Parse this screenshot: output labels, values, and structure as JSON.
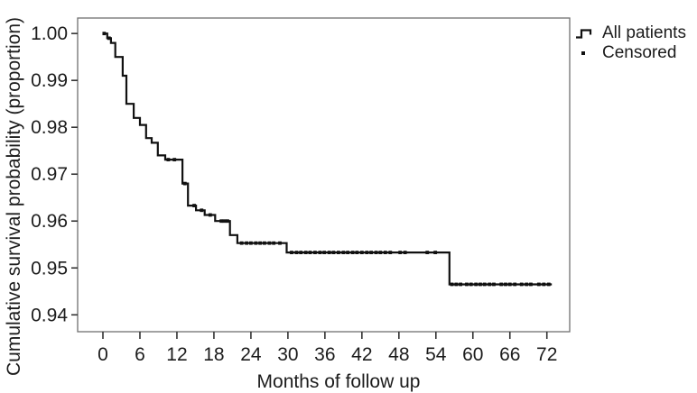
{
  "figure": {
    "y_axis_title": "Cumulative survival probability (proportion)",
    "x_axis_title": "Months of follow up",
    "legend": [
      {
        "label": "All patients",
        "marker": "step-line-icon"
      },
      {
        "label": "Censored",
        "marker": "dot-icon"
      }
    ],
    "line_color": "#111111",
    "text_color": "#1c1c1c",
    "frame_color": "#6f6f6f",
    "axis_color": "#333333"
  },
  "chart_data": {
    "type": "line",
    "subtype": "kaplan-meier-step",
    "title": "",
    "xlabel": "Months of follow up",
    "ylabel": "Cumulative survival probability (proportion)",
    "legend_position": "top-right-outside",
    "grid": false,
    "xlim": [
      -4.1,
      75.7
    ],
    "ylim": [
      0.9364,
      1.0033
    ],
    "x_tick_values": [
      0,
      6,
      12,
      18,
      24,
      30,
      36,
      42,
      48,
      54,
      60,
      66,
      72
    ],
    "x_tick_labels": [
      "0",
      "6",
      "12",
      "18",
      "24",
      "30",
      "36",
      "42",
      "48",
      "54",
      "60",
      "66",
      "72"
    ],
    "y_tick_values": [
      1.0,
      0.99,
      0.98,
      0.97,
      0.96,
      0.95,
      0.94
    ],
    "y_tick_labels": [
      "1.00",
      "0.99",
      "0.98",
      "0.97",
      "0.96",
      "0.95",
      "0.94"
    ],
    "series": [
      {
        "name": "All patients",
        "style": "step-post",
        "points": [
          [
            0,
            1.0
          ],
          [
            0.7,
            0.999
          ],
          [
            1.3,
            0.998
          ],
          [
            2.0,
            0.995
          ],
          [
            3.2,
            0.991
          ],
          [
            3.8,
            0.985
          ],
          [
            5.0,
            0.982
          ],
          [
            6.0,
            0.9805
          ],
          [
            7.0,
            0.9777
          ],
          [
            7.9,
            0.9767
          ],
          [
            8.9,
            0.974
          ],
          [
            10.1,
            0.9731
          ],
          [
            12.9,
            0.968
          ],
          [
            13.8,
            0.9633
          ],
          [
            15.1,
            0.9623
          ],
          [
            16.5,
            0.9613
          ],
          [
            18.2,
            0.96
          ],
          [
            20.6,
            0.957
          ],
          [
            21.8,
            0.9553
          ],
          [
            29.8,
            0.9533
          ],
          [
            56.2,
            0.9465
          ],
          [
            72.8,
            0.9465
          ]
        ]
      }
    ],
    "censored": {
      "name": "Censored",
      "points": [
        [
          0.2,
          1.0
        ],
        [
          1.0,
          0.999
        ],
        [
          10.6,
          0.9731
        ],
        [
          11.6,
          0.9731
        ],
        [
          13.3,
          0.968
        ],
        [
          14.8,
          0.9633
        ],
        [
          16.0,
          0.9623
        ],
        [
          17.4,
          0.9613
        ],
        [
          19.2,
          0.96
        ],
        [
          19.7,
          0.96
        ],
        [
          20.2,
          0.96
        ],
        [
          22.5,
          0.9553
        ],
        [
          23.3,
          0.9553
        ],
        [
          24.0,
          0.9553
        ],
        [
          24.8,
          0.9553
        ],
        [
          25.5,
          0.9553
        ],
        [
          26.2,
          0.9553
        ],
        [
          27.0,
          0.9553
        ],
        [
          27.7,
          0.9553
        ],
        [
          28.7,
          0.9553
        ],
        [
          30.6,
          0.9533
        ],
        [
          31.4,
          0.9533
        ],
        [
          32.1,
          0.9533
        ],
        [
          32.9,
          0.9533
        ],
        [
          33.6,
          0.9533
        ],
        [
          34.4,
          0.9533
        ],
        [
          35.2,
          0.9533
        ],
        [
          35.9,
          0.9533
        ],
        [
          36.7,
          0.9533
        ],
        [
          37.4,
          0.9533
        ],
        [
          38.2,
          0.9533
        ],
        [
          39.0,
          0.9533
        ],
        [
          39.7,
          0.9533
        ],
        [
          40.5,
          0.9533
        ],
        [
          41.2,
          0.9533
        ],
        [
          42.0,
          0.9533
        ],
        [
          42.8,
          0.9533
        ],
        [
          43.5,
          0.9533
        ],
        [
          44.3,
          0.9533
        ],
        [
          45.0,
          0.9533
        ],
        [
          45.8,
          0.9533
        ],
        [
          46.6,
          0.9533
        ],
        [
          48.2,
          0.9533
        ],
        [
          49.0,
          0.9533
        ],
        [
          52.6,
          0.9533
        ],
        [
          53.9,
          0.9533
        ],
        [
          56.6,
          0.9465
        ],
        [
          57.3,
          0.9465
        ],
        [
          58.0,
          0.9465
        ],
        [
          59.0,
          0.9465
        ],
        [
          59.7,
          0.9465
        ],
        [
          60.5,
          0.9465
        ],
        [
          61.2,
          0.9465
        ],
        [
          61.9,
          0.9465
        ],
        [
          62.7,
          0.9465
        ],
        [
          63.4,
          0.9465
        ],
        [
          64.6,
          0.9465
        ],
        [
          65.3,
          0.9465
        ],
        [
          66.0,
          0.9465
        ],
        [
          66.8,
          0.9465
        ],
        [
          67.9,
          0.9465
        ],
        [
          68.7,
          0.9465
        ],
        [
          69.4,
          0.9465
        ],
        [
          70.7,
          0.9465
        ],
        [
          71.5,
          0.9465
        ],
        [
          72.3,
          0.9465
        ]
      ]
    }
  }
}
